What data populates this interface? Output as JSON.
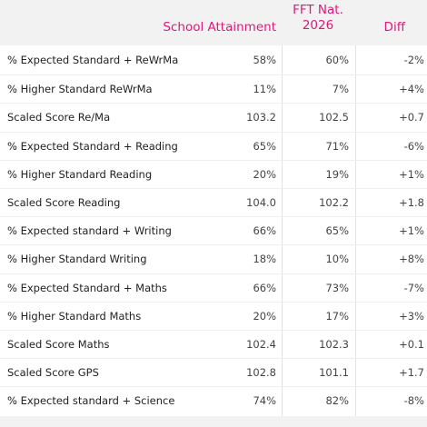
{
  "header": {
    "columns": [
      "School Attainment",
      "FFT Nat. 2026",
      "Diff"
    ]
  },
  "table": {
    "rows": [
      [
        "% Expected Standard + ReWrMa",
        "58%",
        "60%",
        "-2%"
      ],
      [
        "% Higher Standard ReWrMa",
        "11%",
        "7%",
        "+4%"
      ],
      [
        "Scaled Score Re/Ma",
        "103.2",
        "102.5",
        "+0.7"
      ],
      [
        "% Expected Standard + Reading",
        "65%",
        "71%",
        "-6%"
      ],
      [
        "% Higher Standard Reading",
        "20%",
        "19%",
        "+1%"
      ],
      [
        "Scaled Score Reading",
        "104.0",
        "102.2",
        "+1.8"
      ],
      [
        "% Expected standard + Writing",
        "66%",
        "65%",
        "+1%"
      ],
      [
        "% Higher Standard Writing",
        "18%",
        "10%",
        "+8%"
      ],
      [
        "% Expected Standard + Maths",
        "66%",
        "73%",
        "-7%"
      ],
      [
        "% Higher Standard Maths",
        "20%",
        "17%",
        "+3%"
      ],
      [
        "Scaled Score Maths",
        "102.4",
        "102.3",
        "+0.1"
      ],
      [
        "Scaled Score GPS",
        "102.8",
        "101.1",
        "+1.7"
      ],
      [
        "% Expected standard + Science",
        "74%",
        "82%",
        "-8%"
      ]
    ]
  }
}
